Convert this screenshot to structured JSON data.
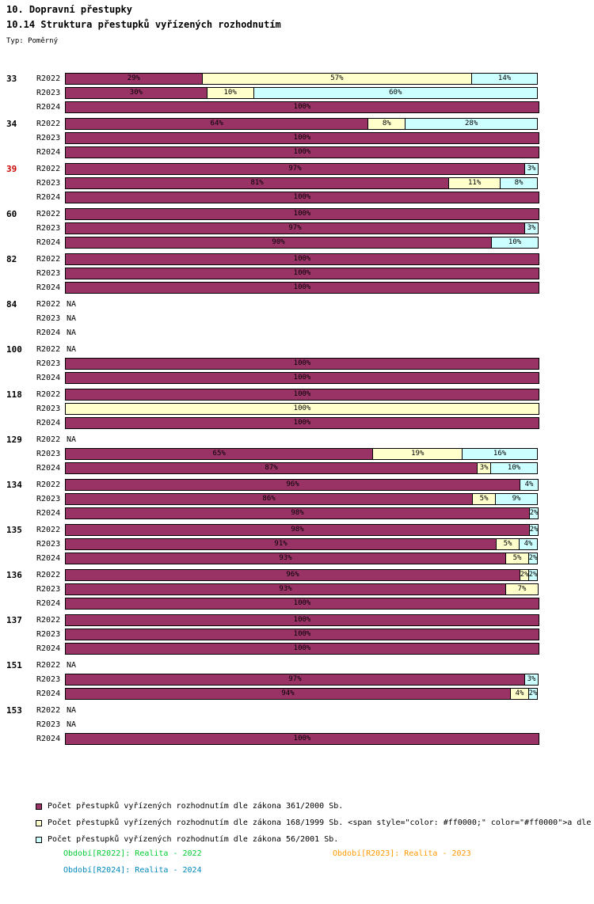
{
  "page": {
    "title": "10. Dopravní přestupky",
    "subtitle": "10.14 Struktura přestupků vyřízených rozhodnutím",
    "type_label": "Typ: Poměrný"
  },
  "chart_data": {
    "type": "bar",
    "orientation": "horizontal",
    "stacked": true,
    "value_unit": "%",
    "x_range": [
      0,
      100
    ],
    "na_text": "NA",
    "series": [
      {
        "key": "s361",
        "color": "#993366",
        "label": "Počet přestupků vyřízených rozhodnutím dle zákona 361/2000 Sb."
      },
      {
        "key": "s168",
        "color": "#FFFFCC",
        "label": "Počet přestupků vyřízených rozhodnutím dle zákona 168/1999 Sb. <span style=\"color: #ff0000;\" color=\"#ff0000\">a dle"
      },
      {
        "key": "s56",
        "color": "#CCFFFF",
        "label": "Počet přestupků vyřízených rozhodnutím dle zákona 56/2001 Sb."
      }
    ],
    "groups": [
      {
        "id": "33",
        "red": false,
        "rows": [
          {
            "label": "R2022",
            "segments": [
              [
                "s361",
                29
              ],
              [
                "s168",
                57
              ],
              [
                "s56",
                14
              ]
            ]
          },
          {
            "label": "R2023",
            "segments": [
              [
                "s361",
                30
              ],
              [
                "s168",
                10
              ],
              [
                "s56",
                60
              ]
            ]
          },
          {
            "label": "R2024",
            "segments": [
              [
                "s361",
                100
              ]
            ]
          }
        ]
      },
      {
        "id": "34",
        "red": false,
        "rows": [
          {
            "label": "R2022",
            "segments": [
              [
                "s361",
                64
              ],
              [
                "s168",
                8
              ],
              [
                "s56",
                28
              ]
            ]
          },
          {
            "label": "R2023",
            "segments": [
              [
                "s361",
                100
              ]
            ]
          },
          {
            "label": "R2024",
            "segments": [
              [
                "s361",
                100
              ]
            ]
          }
        ]
      },
      {
        "id": "39",
        "red": true,
        "rows": [
          {
            "label": "R2022",
            "segments": [
              [
                "s361",
                97
              ],
              [
                "s56",
                3
              ]
            ]
          },
          {
            "label": "R2023",
            "segments": [
              [
                "s361",
                81
              ],
              [
                "s168",
                11
              ],
              [
                "s56",
                8
              ]
            ]
          },
          {
            "label": "R2024",
            "segments": [
              [
                "s361",
                100
              ]
            ]
          }
        ]
      },
      {
        "id": "60",
        "red": false,
        "rows": [
          {
            "label": "R2022",
            "segments": [
              [
                "s361",
                100
              ]
            ]
          },
          {
            "label": "R2023",
            "segments": [
              [
                "s361",
                97
              ],
              [
                "s56",
                3
              ]
            ]
          },
          {
            "label": "R2024",
            "segments": [
              [
                "s361",
                90
              ],
              [
                "s56",
                10
              ]
            ]
          }
        ]
      },
      {
        "id": "82",
        "red": false,
        "rows": [
          {
            "label": "R2022",
            "segments": [
              [
                "s361",
                100
              ]
            ]
          },
          {
            "label": "R2023",
            "segments": [
              [
                "s361",
                100
              ]
            ]
          },
          {
            "label": "R2024",
            "segments": [
              [
                "s361",
                100
              ]
            ]
          }
        ]
      },
      {
        "id": "84",
        "red": false,
        "rows": [
          {
            "label": "R2022",
            "na": true
          },
          {
            "label": "R2023",
            "na": true
          },
          {
            "label": "R2024",
            "na": true
          }
        ]
      },
      {
        "id": "100",
        "red": false,
        "rows": [
          {
            "label": "R2022",
            "na": true
          },
          {
            "label": "R2023",
            "segments": [
              [
                "s361",
                100
              ]
            ]
          },
          {
            "label": "R2024",
            "segments": [
              [
                "s361",
                100
              ]
            ]
          }
        ]
      },
      {
        "id": "118",
        "red": false,
        "rows": [
          {
            "label": "R2022",
            "segments": [
              [
                "s361",
                100
              ]
            ]
          },
          {
            "label": "R2023",
            "segments": [
              [
                "s168",
                100
              ]
            ]
          },
          {
            "label": "R2024",
            "segments": [
              [
                "s361",
                100
              ]
            ]
          }
        ]
      },
      {
        "id": "129",
        "red": false,
        "rows": [
          {
            "label": "R2022",
            "na": true
          },
          {
            "label": "R2023",
            "segments": [
              [
                "s361",
                65
              ],
              [
                "s168",
                19
              ],
              [
                "s56",
                16
              ]
            ]
          },
          {
            "label": "R2024",
            "segments": [
              [
                "s361",
                87
              ],
              [
                "s168",
                3
              ],
              [
                "s56",
                10
              ]
            ]
          }
        ]
      },
      {
        "id": "134",
        "red": false,
        "rows": [
          {
            "label": "R2022",
            "segments": [
              [
                "s361",
                96
              ],
              [
                "s56",
                4
              ]
            ]
          },
          {
            "label": "R2023",
            "segments": [
              [
                "s361",
                86
              ],
              [
                "s168",
                5
              ],
              [
                "s56",
                9
              ]
            ]
          },
          {
            "label": "R2024",
            "segments": [
              [
                "s361",
                98
              ],
              [
                "s56",
                2
              ]
            ]
          }
        ]
      },
      {
        "id": "135",
        "red": false,
        "rows": [
          {
            "label": "R2022",
            "segments": [
              [
                "s361",
                98
              ],
              [
                "s56",
                2
              ]
            ]
          },
          {
            "label": "R2023",
            "segments": [
              [
                "s361",
                91
              ],
              [
                "s168",
                5
              ],
              [
                "s56",
                4
              ]
            ]
          },
          {
            "label": "R2024",
            "segments": [
              [
                "s361",
                93
              ],
              [
                "s168",
                5
              ],
              [
                "s56",
                2
              ]
            ]
          }
        ]
      },
      {
        "id": "136",
        "red": false,
        "rows": [
          {
            "label": "R2022",
            "segments": [
              [
                "s361",
                96
              ],
              [
                "s168",
                2
              ],
              [
                "s56",
                2
              ]
            ]
          },
          {
            "label": "R2023",
            "segments": [
              [
                "s361",
                93
              ],
              [
                "s168",
                7
              ]
            ]
          },
          {
            "label": "R2024",
            "segments": [
              [
                "s361",
                100
              ]
            ]
          }
        ]
      },
      {
        "id": "137",
        "red": false,
        "rows": [
          {
            "label": "R2022",
            "segments": [
              [
                "s361",
                100
              ]
            ]
          },
          {
            "label": "R2023",
            "segments": [
              [
                "s361",
                100
              ]
            ]
          },
          {
            "label": "R2024",
            "segments": [
              [
                "s361",
                100
              ]
            ]
          }
        ]
      },
      {
        "id": "151",
        "red": false,
        "rows": [
          {
            "label": "R2022",
            "na": true
          },
          {
            "label": "R2023",
            "segments": [
              [
                "s361",
                97
              ],
              [
                "s56",
                3
              ]
            ]
          },
          {
            "label": "R2024",
            "segments": [
              [
                "s361",
                94
              ],
              [
                "s168",
                4
              ],
              [
                "s56",
                2
              ]
            ]
          }
        ]
      },
      {
        "id": "153",
        "red": false,
        "rows": [
          {
            "label": "R2022",
            "na": true
          },
          {
            "label": "R2023",
            "na": true
          },
          {
            "label": "R2024",
            "segments": [
              [
                "s361",
                100
              ]
            ]
          }
        ]
      }
    ]
  },
  "footer": {
    "r2022": "Období[R2022]: Realita - 2022",
    "r2023": "Období[R2023]: Realita - 2023",
    "r2024": "Období[R2024]: Realita - 2024",
    "r2022_color": "#00CC33",
    "r2023_color": "#FF9900",
    "r2024_color": "#0088BB"
  }
}
